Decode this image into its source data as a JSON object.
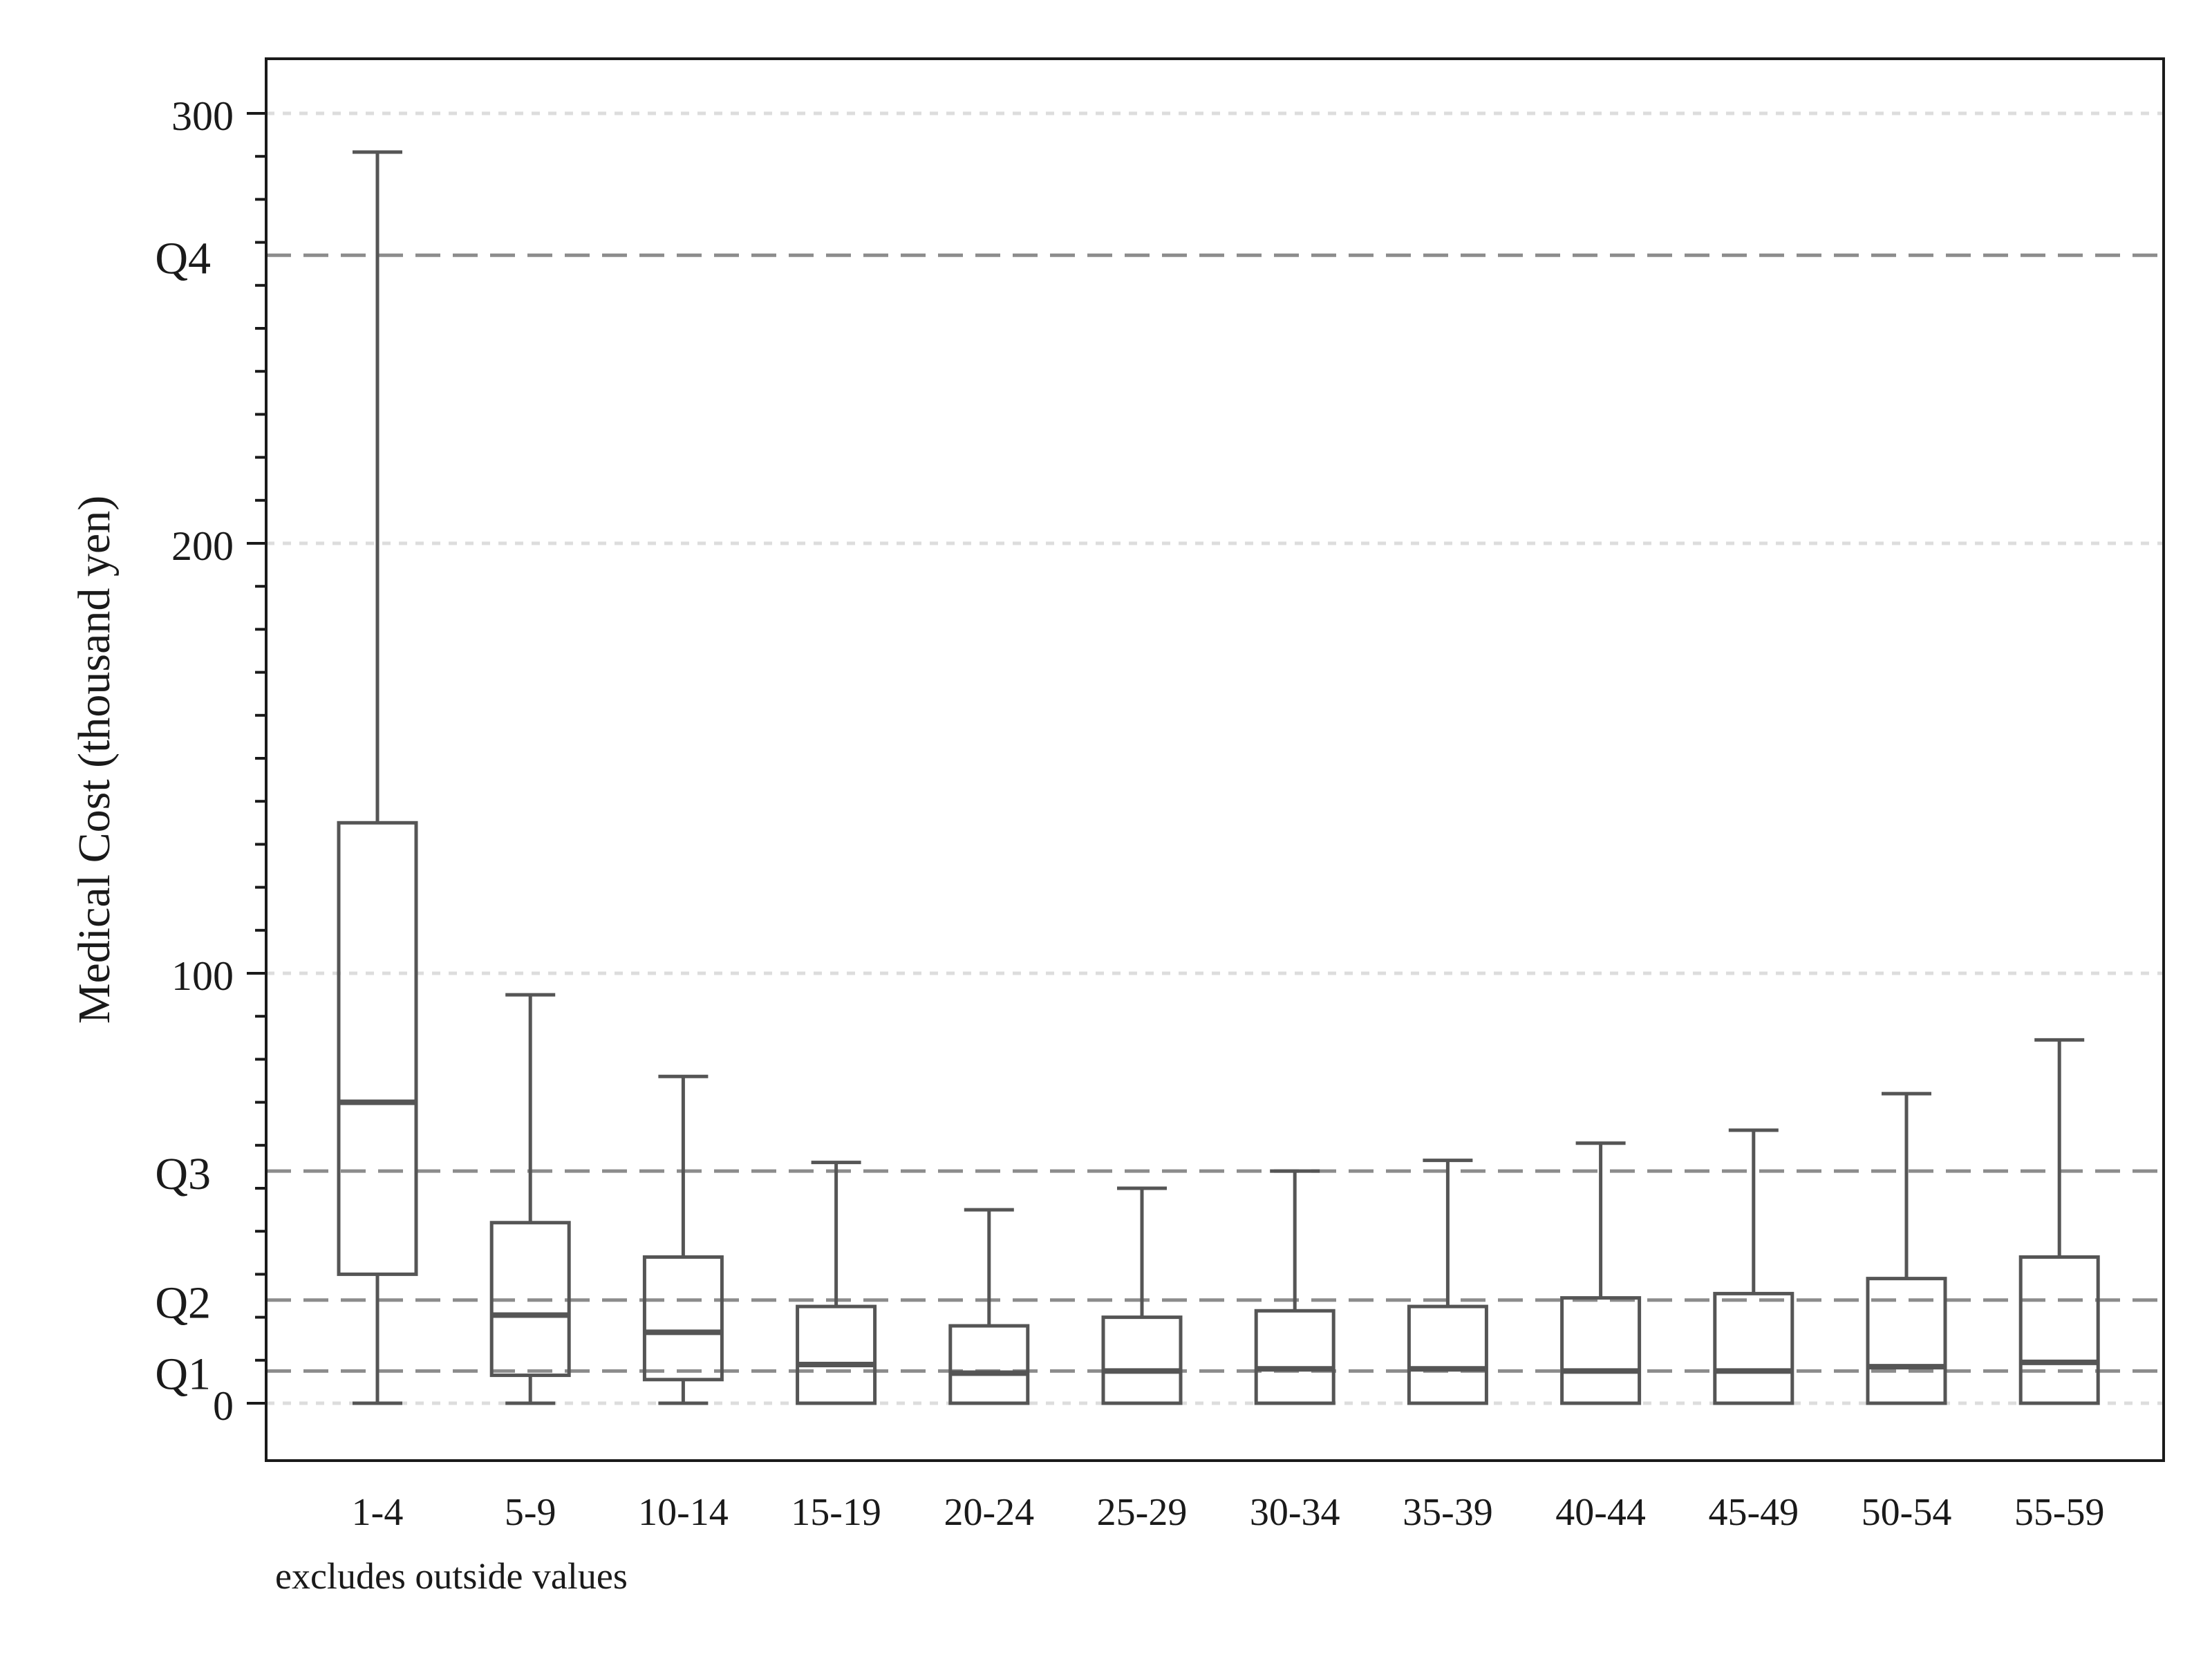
{
  "chart_data": {
    "type": "boxplot",
    "ylabel": "Medical Cost (thousand yen)",
    "note": "excludes outside values",
    "ylim": [
      -13,
      313
    ],
    "y_major_ticks": [
      0,
      100,
      200,
      300
    ],
    "y_minor_step": 10,
    "grid": "horizontal dotted at major ticks",
    "reference_lines": [
      {
        "label": "Q1",
        "value": 7.5
      },
      {
        "label": "Q2",
        "value": 24
      },
      {
        "label": "Q3",
        "value": 54
      },
      {
        "label": "Q4",
        "value": 267
      }
    ],
    "categories": [
      "1-4",
      "5-9",
      "10-14",
      "15-19",
      "20-24",
      "25-29",
      "30-34",
      "35-39",
      "40-44",
      "45-49",
      "50-54",
      "55-59"
    ],
    "series": [
      {
        "boxes": [
          {
            "min": 0,
            "q1": 30,
            "median": 70,
            "q3": 135,
            "max": 291
          },
          {
            "min": 0,
            "q1": 6.5,
            "median": 20.5,
            "q3": 42,
            "max": 95
          },
          {
            "min": 0,
            "q1": 5.5,
            "median": 16.5,
            "q3": 34,
            "max": 76
          },
          {
            "min": 0,
            "q1": 0,
            "median": 9,
            "q3": 22.5,
            "max": 56
          },
          {
            "min": 0,
            "q1": 0,
            "median": 7,
            "q3": 18,
            "max": 45
          },
          {
            "min": 0,
            "q1": 0,
            "median": 7.5,
            "q3": 20,
            "max": 50
          },
          {
            "min": 0,
            "q1": 0,
            "median": 8,
            "q3": 21.5,
            "max": 54
          },
          {
            "min": 0,
            "q1": 0,
            "median": 8,
            "q3": 22.5,
            "max": 56.5
          },
          {
            "min": 0,
            "q1": 0,
            "median": 7.5,
            "q3": 24.5,
            "max": 60.5
          },
          {
            "min": 0,
            "q1": 0,
            "median": 7.5,
            "q3": 25.5,
            "max": 63.5
          },
          {
            "min": 0,
            "q1": 0,
            "median": 8.5,
            "q3": 29,
            "max": 72
          },
          {
            "min": 0,
            "q1": 0,
            "median": 9.5,
            "q3": 34,
            "max": 84.5
          }
        ]
      }
    ],
    "colors": {
      "box": "#555555",
      "ref_line": "#8c8c8c",
      "grid": "#dddddd",
      "frame": "#1a1a1a"
    }
  }
}
